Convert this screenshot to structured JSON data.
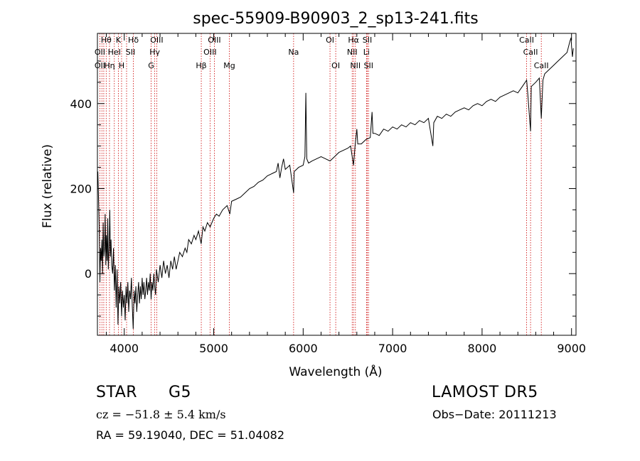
{
  "chart_data": {
    "type": "line",
    "title": "spec-55909-B90903_2_sp13-241.fits",
    "xlabel": "Wavelength (Å)",
    "ylabel": "Flux (relative)",
    "xlim": [
      3700,
      9050
    ],
    "ylim": [
      -145,
      565
    ],
    "xticks": [
      4000,
      5000,
      6000,
      7000,
      8000,
      9000
    ],
    "yticks": [
      0,
      200,
      400
    ],
    "grid": false,
    "series": [
      {
        "points": [
          [
            3705,
            240
          ],
          [
            3712,
            180
          ],
          [
            3720,
            110
          ],
          [
            3728,
            -20
          ],
          [
            3735,
            60
          ],
          [
            3742,
            30
          ],
          [
            3750,
            80
          ],
          [
            3757,
            0
          ],
          [
            3764,
            120
          ],
          [
            3772,
            40
          ],
          [
            3780,
            60
          ],
          [
            3787,
            140
          ],
          [
            3794,
            20
          ],
          [
            3800,
            90
          ],
          [
            3808,
            30
          ],
          [
            3815,
            130
          ],
          [
            3822,
            10
          ],
          [
            3830,
            60
          ],
          [
            3838,
            150
          ],
          [
            3845,
            40
          ],
          [
            3852,
            80
          ],
          [
            3860,
            20
          ],
          [
            3870,
            0
          ],
          [
            3880,
            60
          ],
          [
            3890,
            -40
          ],
          [
            3900,
            20
          ],
          [
            3910,
            -80
          ],
          [
            3920,
            10
          ],
          [
            3930,
            -120
          ],
          [
            3940,
            -30
          ],
          [
            3950,
            -70
          ],
          [
            3960,
            -20
          ],
          [
            3970,
            -100
          ],
          [
            3980,
            -40
          ],
          [
            3990,
            -80
          ],
          [
            4000,
            -50
          ],
          [
            4010,
            -110
          ],
          [
            4020,
            -30
          ],
          [
            4030,
            -70
          ],
          [
            4040,
            -20
          ],
          [
            4050,
            -90
          ],
          [
            4060,
            -40
          ],
          [
            4070,
            -60
          ],
          [
            4080,
            -10
          ],
          [
            4090,
            -80
          ],
          [
            4100,
            -130
          ],
          [
            4110,
            -40
          ],
          [
            4120,
            -70
          ],
          [
            4130,
            -30
          ],
          [
            4140,
            -90
          ],
          [
            4150,
            -50
          ],
          [
            4160,
            -20
          ],
          [
            4170,
            -70
          ],
          [
            4180,
            -30
          ],
          [
            4190,
            -60
          ],
          [
            4200,
            -10
          ],
          [
            4210,
            -50
          ],
          [
            4220,
            -20
          ],
          [
            4230,
            -60
          ],
          [
            4240,
            -40
          ],
          [
            4250,
            -10
          ],
          [
            4260,
            -50
          ],
          [
            4270,
            -20
          ],
          [
            4280,
            -40
          ],
          [
            4290,
            0
          ],
          [
            4300,
            -60
          ],
          [
            4310,
            -20
          ],
          [
            4320,
            -40
          ],
          [
            4330,
            0
          ],
          [
            4340,
            -30
          ],
          [
            4350,
            -50
          ],
          [
            4360,
            10
          ],
          [
            4380,
            -20
          ],
          [
            4400,
            20
          ],
          [
            4420,
            -10
          ],
          [
            4440,
            30
          ],
          [
            4460,
            0
          ],
          [
            4480,
            20
          ],
          [
            4500,
            -10
          ],
          [
            4520,
            30
          ],
          [
            4540,
            10
          ],
          [
            4560,
            40
          ],
          [
            4580,
            10
          ],
          [
            4600,
            30
          ],
          [
            4620,
            50
          ],
          [
            4650,
            40
          ],
          [
            4680,
            60
          ],
          [
            4700,
            50
          ],
          [
            4720,
            80
          ],
          [
            4750,
            70
          ],
          [
            4780,
            90
          ],
          [
            4800,
            80
          ],
          [
            4830,
            100
          ],
          [
            4860,
            70
          ],
          [
            4880,
            110
          ],
          [
            4900,
            100
          ],
          [
            4930,
            120
          ],
          [
            4960,
            110
          ],
          [
            5000,
            130
          ],
          [
            5030,
            140
          ],
          [
            5060,
            135
          ],
          [
            5100,
            150
          ],
          [
            5150,
            160
          ],
          [
            5180,
            140
          ],
          [
            5200,
            170
          ],
          [
            5250,
            175
          ],
          [
            5300,
            180
          ],
          [
            5350,
            190
          ],
          [
            5400,
            200
          ],
          [
            5450,
            205
          ],
          [
            5500,
            215
          ],
          [
            5550,
            220
          ],
          [
            5600,
            230
          ],
          [
            5650,
            235
          ],
          [
            5700,
            240
          ],
          [
            5720,
            260
          ],
          [
            5740,
            225
          ],
          [
            5760,
            250
          ],
          [
            5780,
            270
          ],
          [
            5800,
            245
          ],
          [
            5850,
            255
          ],
          [
            5893,
            190
          ],
          [
            5900,
            240
          ],
          [
            5950,
            250
          ],
          [
            6000,
            255
          ],
          [
            6020,
            275
          ],
          [
            6030,
            425
          ],
          [
            6040,
            270
          ],
          [
            6060,
            260
          ],
          [
            6100,
            265
          ],
          [
            6150,
            270
          ],
          [
            6200,
            275
          ],
          [
            6250,
            270
          ],
          [
            6300,
            265
          ],
          [
            6350,
            275
          ],
          [
            6400,
            285
          ],
          [
            6450,
            290
          ],
          [
            6500,
            295
          ],
          [
            6530,
            300
          ],
          [
            6563,
            255
          ],
          [
            6580,
            300
          ],
          [
            6600,
            340
          ],
          [
            6610,
            305
          ],
          [
            6650,
            305
          ],
          [
            6700,
            315
          ],
          [
            6750,
            320
          ],
          [
            6770,
            380
          ],
          [
            6780,
            330
          ],
          [
            6800,
            330
          ],
          [
            6850,
            325
          ],
          [
            6900,
            340
          ],
          [
            6950,
            335
          ],
          [
            7000,
            345
          ],
          [
            7050,
            340
          ],
          [
            7100,
            350
          ],
          [
            7150,
            345
          ],
          [
            7200,
            355
          ],
          [
            7250,
            350
          ],
          [
            7300,
            360
          ],
          [
            7350,
            355
          ],
          [
            7400,
            365
          ],
          [
            7450,
            300
          ],
          [
            7460,
            355
          ],
          [
            7500,
            370
          ],
          [
            7550,
            365
          ],
          [
            7600,
            375
          ],
          [
            7650,
            370
          ],
          [
            7700,
            380
          ],
          [
            7750,
            385
          ],
          [
            7800,
            390
          ],
          [
            7850,
            385
          ],
          [
            7900,
            395
          ],
          [
            7950,
            400
          ],
          [
            8000,
            395
          ],
          [
            8050,
            405
          ],
          [
            8100,
            410
          ],
          [
            8150,
            405
          ],
          [
            8200,
            415
          ],
          [
            8250,
            420
          ],
          [
            8300,
            425
          ],
          [
            8350,
            430
          ],
          [
            8400,
            425
          ],
          [
            8450,
            440
          ],
          [
            8498,
            455
          ],
          [
            8510,
            425
          ],
          [
            8542,
            335
          ],
          [
            8550,
            440
          ],
          [
            8600,
            450
          ],
          [
            8640,
            460
          ],
          [
            8662,
            365
          ],
          [
            8680,
            455
          ],
          [
            8700,
            470
          ],
          [
            8750,
            480
          ],
          [
            8800,
            490
          ],
          [
            8850,
            500
          ],
          [
            8900,
            510
          ],
          [
            8950,
            520
          ],
          [
            8980,
            545
          ],
          [
            8995,
            555
          ],
          [
            9000,
            535
          ],
          [
            9010,
            510
          ],
          [
            9020,
            530
          ]
        ]
      }
    ],
    "annotations": {
      "lines": [
        3727,
        3750,
        3771,
        3798,
        3835,
        3889,
        3934,
        3970,
        4026,
        4102,
        4300,
        4341,
        4363,
        4861,
        4959,
        5007,
        5175,
        5893,
        6300,
        6364,
        6548,
        6563,
        6584,
        6708,
        6717,
        6731,
        8498,
        8542,
        8662
      ],
      "labels": [
        {
          "text": "Hδ",
          "wl": 4102,
          "row": 0
        },
        {
          "text": "OIII",
          "wl": 4363,
          "row": 0
        },
        {
          "text": "OIII",
          "wl": 5007,
          "row": 0
        },
        {
          "text": "OI",
          "wl": 6300,
          "row": 0
        },
        {
          "text": "Hα",
          "wl": 6563,
          "row": 0
        },
        {
          "text": "SII",
          "wl": 6717,
          "row": 0
        },
        {
          "text": "CaII",
          "wl": 8498,
          "row": 0
        },
        {
          "text": "Hθ",
          "wl": 3798,
          "row": 0
        },
        {
          "text": "K",
          "wl": 3934,
          "row": 0
        },
        {
          "text": "OII",
          "wl": 3727,
          "row": 1
        },
        {
          "text": "HeI",
          "wl": 3889,
          "row": 1
        },
        {
          "text": "SII",
          "wl": 4070,
          "row": 1
        },
        {
          "text": "Hγ",
          "wl": 4341,
          "row": 1
        },
        {
          "text": "OIII",
          "wl": 4959,
          "row": 1
        },
        {
          "text": "Na",
          "wl": 5893,
          "row": 1
        },
        {
          "text": "NII",
          "wl": 6548,
          "row": 1
        },
        {
          "text": "Li",
          "wl": 6708,
          "row": 1
        },
        {
          "text": "CaII",
          "wl": 8542,
          "row": 1
        },
        {
          "text": "OII",
          "wl": 3727,
          "row": 2
        },
        {
          "text": "Hη",
          "wl": 3835,
          "row": 2
        },
        {
          "text": "H",
          "wl": 3970,
          "row": 2
        },
        {
          "text": "G",
          "wl": 4300,
          "row": 2
        },
        {
          "text": "Hβ",
          "wl": 4861,
          "row": 2
        },
        {
          "text": "Mg",
          "wl": 5175,
          "row": 2
        },
        {
          "text": "OI",
          "wl": 6364,
          "row": 2
        },
        {
          "text": "NII",
          "wl": 6584,
          "row": 2
        },
        {
          "text": "SII",
          "wl": 6731,
          "row": 2
        },
        {
          "text": "CaII",
          "wl": 8662,
          "row": 2
        }
      ]
    }
  },
  "info": {
    "class": "STAR",
    "subclass": "G5",
    "survey": "LAMOST DR5",
    "cz": "cz = −51.8 ± 5.4 km/s",
    "obs_date": "Obs−Date: 20111213",
    "coords": "RA =  59.19040, DEC =  51.04082"
  },
  "colors": {
    "line": "#000000",
    "marker": "#cc0000"
  }
}
